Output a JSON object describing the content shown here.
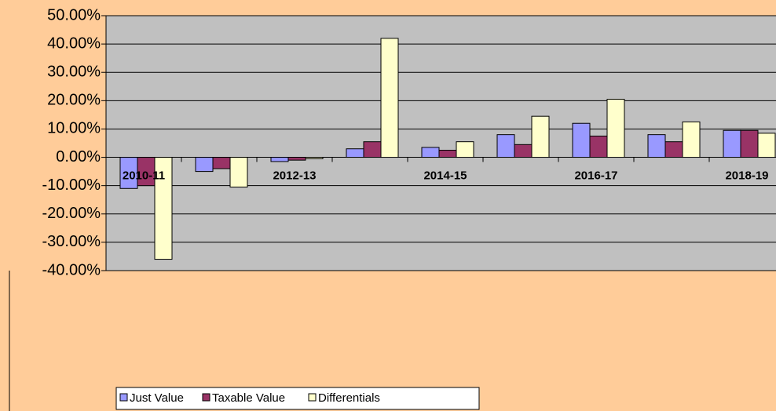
{
  "chart_data": {
    "type": "bar",
    "categories": [
      "2010-11",
      null,
      "2012-13",
      null,
      "2014-15",
      null,
      "2016-17",
      null,
      "2018-19"
    ],
    "series": [
      {
        "name": "Just Value",
        "color": "#9999FF",
        "values": [
          -11,
          -5,
          -1.5,
          3,
          3.5,
          8,
          12,
          8,
          9.5
        ]
      },
      {
        "name": "Taxable Value",
        "color": "#993366",
        "values": [
          -10,
          -4,
          -1,
          5.5,
          2.5,
          4.5,
          7.5,
          5.5,
          9.5
        ]
      },
      {
        "name": "Differentials",
        "color": "#FFFFCC",
        "values": [
          -36,
          -10.5,
          -0.5,
          42,
          5.5,
          14.5,
          20.5,
          12.5,
          8.5
        ]
      }
    ],
    "ylim": [
      -40,
      50
    ],
    "yticks": [
      {
        "value": -40,
        "label": "-40.00%"
      },
      {
        "value": -30,
        "label": "-30.00%"
      },
      {
        "value": -20,
        "label": "-20.00%"
      },
      {
        "value": -10,
        "label": "-10.00%"
      },
      {
        "value": 0,
        "label": "0.00%"
      },
      {
        "value": 10,
        "label": "10.00%"
      },
      {
        "value": 20,
        "label": "20.00%"
      },
      {
        "value": 30,
        "label": "30.00%"
      },
      {
        "value": 40,
        "label": "40.00%"
      },
      {
        "value": 50,
        "label": "50.00%"
      }
    ],
    "grid": true,
    "legend": "bottom"
  }
}
